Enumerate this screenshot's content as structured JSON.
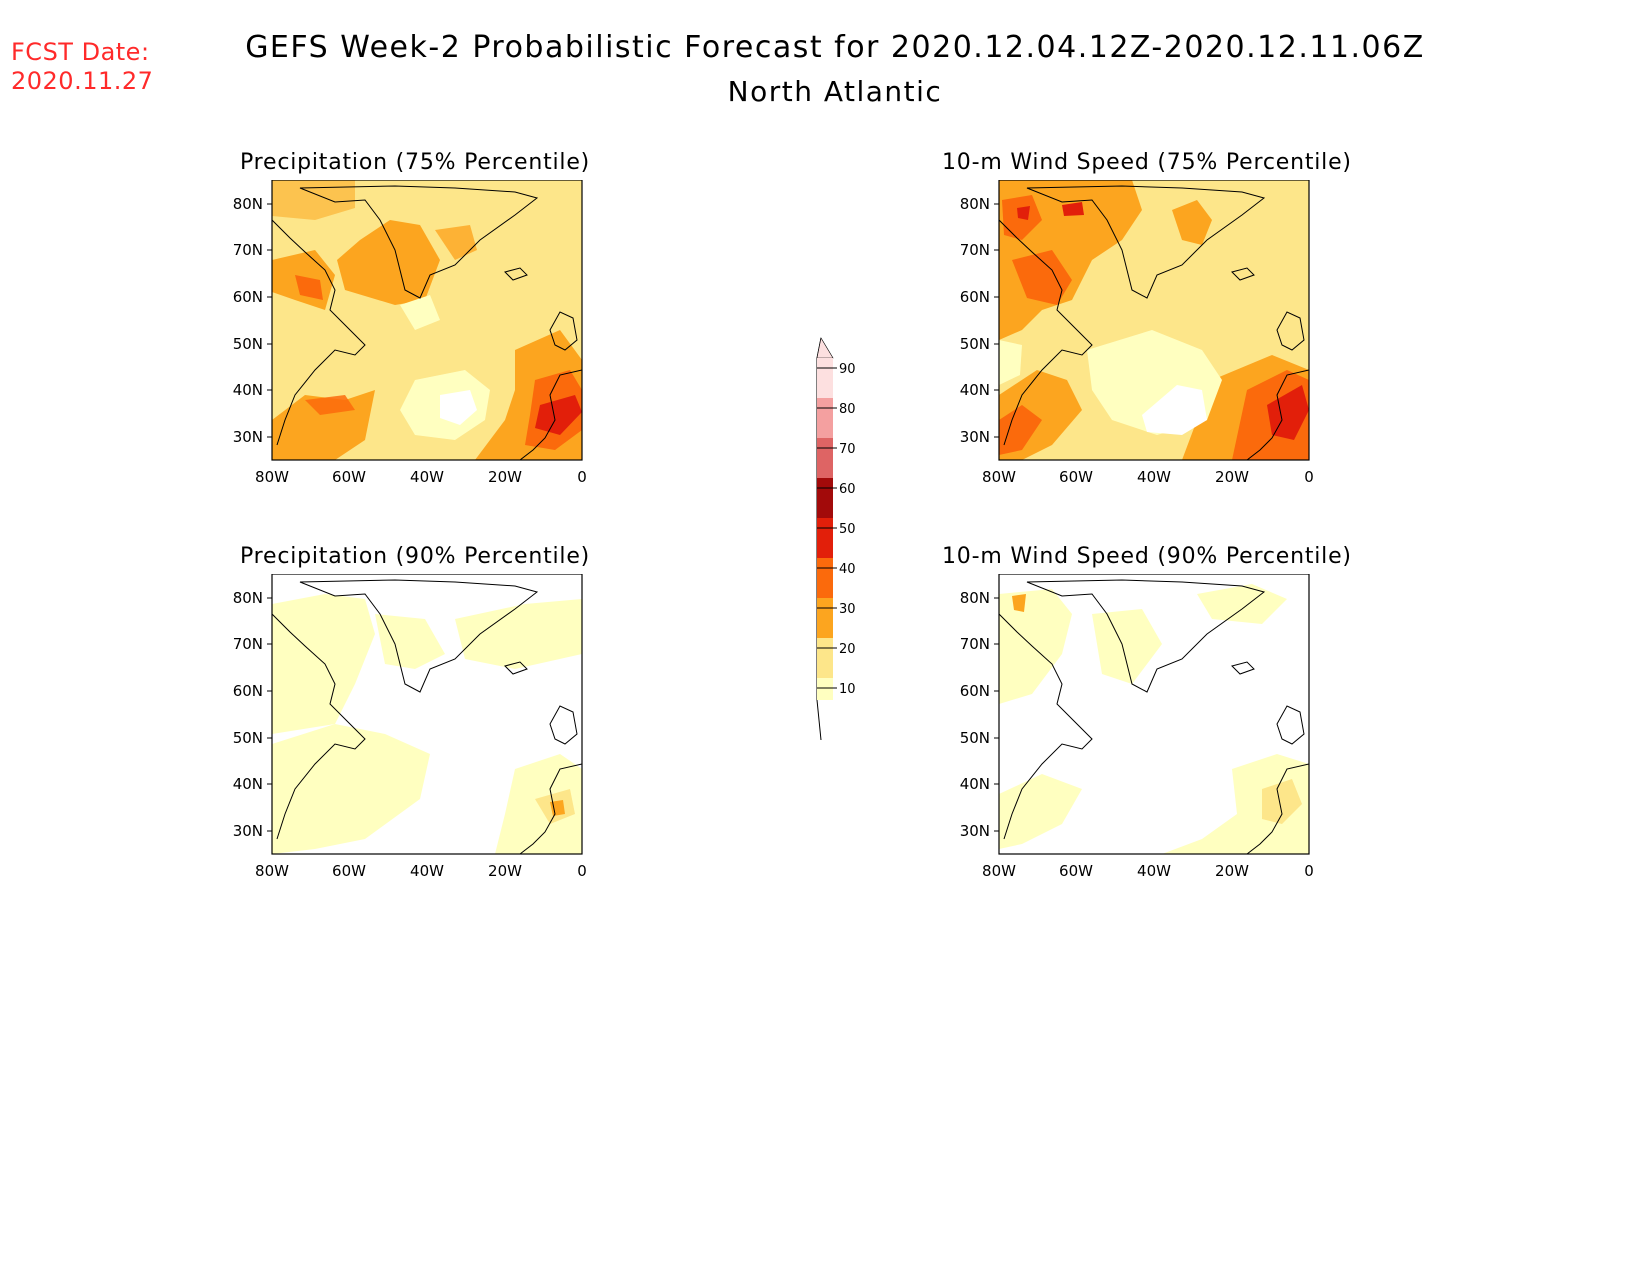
{
  "header": {
    "fcst_label": "FCST Date:",
    "fcst_date": "2020.11.27",
    "title": "GEFS Week-2 Probabilistic Forecast for 2020.12.04.12Z-2020.12.11.06Z",
    "subtitle": "North Atlantic"
  },
  "colors": {
    "c10": "#ffffc0",
    "c20": "#fde68a",
    "c30": "#fca51f",
    "c40": "#fb6a0c",
    "c50": "#e21f0a",
    "c60": "#a20a0a",
    "c70": "#de6464",
    "c80": "#f4a0a0",
    "c90": "#fde0e0"
  },
  "colorbar": {
    "levels": [
      "10",
      "20",
      "30",
      "40",
      "50",
      "60",
      "70",
      "80",
      "90"
    ]
  },
  "axes": {
    "lon_labels": [
      "80W",
      "60W",
      "40W",
      "20W",
      "0"
    ],
    "lat_labels": [
      "80N",
      "70N",
      "60N",
      "50N",
      "40N",
      "30N"
    ]
  },
  "panels": [
    {
      "id": "precip75",
      "title": "Precipitation (75% Percentile)"
    },
    {
      "id": "wind75",
      "title": "10-m Wind Speed (75% Percentile)"
    },
    {
      "id": "precip90",
      "title": "Precipitation (90% Percentile)"
    },
    {
      "id": "wind90",
      "title": "10-m Wind Speed (90% Percentile)"
    }
  ]
}
